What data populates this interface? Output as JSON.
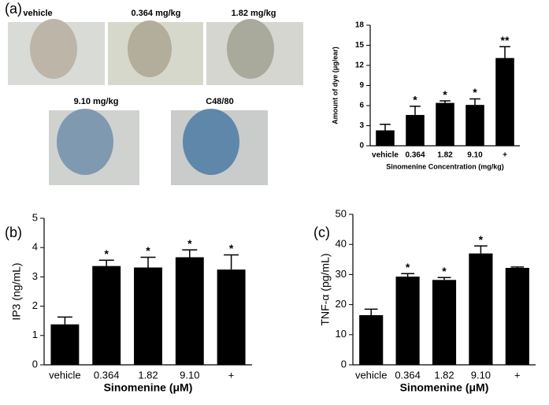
{
  "panels": [
    "(a)",
    "(b)",
    "(c)"
  ],
  "photos": [
    {
      "label": "vehicle"
    },
    {
      "label": "0.364 mg/kg"
    },
    {
      "label": "1.82 mg/kg"
    },
    {
      "label": "9.10 mg/kg"
    },
    {
      "label": "C48/80"
    }
  ],
  "chart_data": [
    {
      "type": "bar",
      "ylabel": "Amount of dye (μg/ear)",
      "xlabel": "Sinomenine Concentration (mg/kg)",
      "categories": [
        "vehicle",
        "0.364",
        "1.82",
        "9.10",
        "+"
      ],
      "values": [
        2.3,
        4.6,
        6.4,
        6.1,
        13.1
      ],
      "errors": [
        0.9,
        1.3,
        0.3,
        0.9,
        1.7
      ],
      "annotations": [
        null,
        "*",
        "*",
        "*",
        "**"
      ],
      "color": "#000000",
      "ylim": [
        0,
        18
      ],
      "yticks": [
        0,
        3,
        6,
        9,
        12,
        15,
        18
      ]
    },
    {
      "type": "bar",
      "ylabel": "IP3 (ng/mL)",
      "xlabel": "Sinomenine (μM)",
      "categories": [
        "vehicle",
        "0.364",
        "1.82",
        "9.10",
        "+"
      ],
      "values": [
        1.38,
        3.37,
        3.32,
        3.67,
        3.25
      ],
      "errors": [
        0.25,
        0.2,
        0.35,
        0.25,
        0.5
      ],
      "annotations": [
        null,
        "*",
        "*",
        "*",
        "*"
      ],
      "color": "#000000",
      "ylim": [
        0,
        5
      ],
      "yticks": [
        0,
        1,
        2,
        3,
        4,
        5
      ]
    },
    {
      "type": "bar",
      "ylabel": "TNF-α (pg/mL)",
      "xlabel": "Sinomenine (μM)",
      "categories": [
        "vehicle",
        "0.364",
        "1.82",
        "9.10",
        "+"
      ],
      "values": [
        16.5,
        29.3,
        28.2,
        37,
        32.2
      ],
      "errors": [
        2,
        1,
        0.8,
        2.5,
        0.3
      ],
      "annotations": [
        null,
        "*",
        "*",
        "*",
        null
      ],
      "color": "#000000",
      "ylim": [
        0,
        50
      ],
      "yticks": [
        0,
        10,
        20,
        30,
        40,
        50
      ]
    }
  ]
}
